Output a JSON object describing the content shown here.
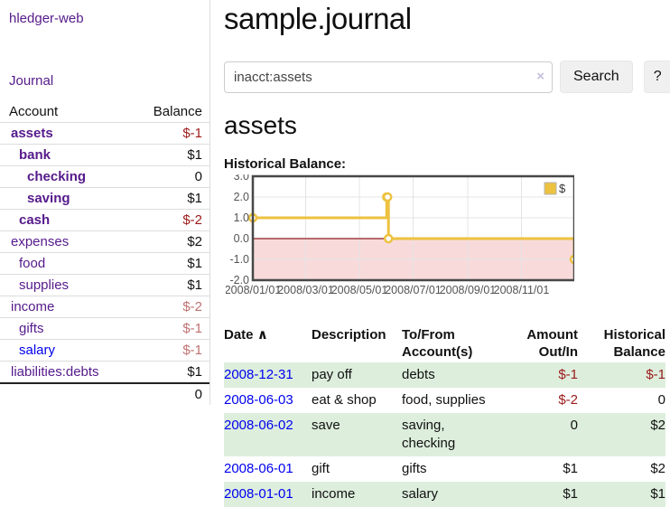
{
  "app": {
    "title": "hledger-web",
    "nav_journal": "Journal"
  },
  "sidebar": {
    "header": {
      "account": "Account",
      "balance": "Balance"
    },
    "accounts": [
      {
        "name": "assets",
        "depth": 1,
        "bold": true,
        "link_color": "purple",
        "balance": "$-1",
        "balance_style": "neg-strong"
      },
      {
        "name": "bank",
        "depth": 2,
        "bold": true,
        "link_color": "purple",
        "balance": "$1",
        "balance_style": "pos-strong"
      },
      {
        "name": "checking",
        "depth": 3,
        "bold": true,
        "link_color": "purple",
        "balance": "0",
        "balance_style": "pos-strong"
      },
      {
        "name": "saving",
        "depth": 3,
        "bold": true,
        "link_color": "purple",
        "balance": "$1",
        "balance_style": "pos-strong"
      },
      {
        "name": "cash",
        "depth": 2,
        "bold": true,
        "link_color": "purple",
        "balance": "$-2",
        "balance_style": "neg-strong"
      },
      {
        "name": "expenses",
        "depth": 1,
        "bold": false,
        "link_color": "purple",
        "balance": "$2",
        "balance_style": "pos"
      },
      {
        "name": "food",
        "depth": 2,
        "bold": false,
        "link_color": "purple",
        "balance": "$1",
        "balance_style": "pos"
      },
      {
        "name": "supplies",
        "depth": 2,
        "bold": false,
        "link_color": "purple",
        "balance": "$1",
        "balance_style": "pos"
      },
      {
        "name": "income",
        "depth": 1,
        "bold": false,
        "link_color": "purple",
        "balance": "$-2",
        "balance_style": "neg-muted"
      },
      {
        "name": "gifts",
        "depth": 2,
        "bold": false,
        "link_color": "purple",
        "balance": "$-1",
        "balance_style": "neg-muted"
      },
      {
        "name": "salary",
        "depth": 2,
        "bold": false,
        "link_color": "blue",
        "balance": "$-1",
        "balance_style": "neg-muted"
      },
      {
        "name": "liabilities:debts",
        "depth": 1,
        "bold": false,
        "link_color": "purple",
        "balance": "$1",
        "balance_style": "pos"
      }
    ],
    "total": "0"
  },
  "main": {
    "title": "sample.journal",
    "search": {
      "value": "inacct:assets",
      "clear_icon": "×",
      "button_label": "Search",
      "help_label": "?"
    },
    "account_heading": "assets",
    "chart_label": "Historical Balance:"
  },
  "chart_data": {
    "type": "line",
    "step": true,
    "title": "Historical Balance",
    "series": [
      {
        "name": "$",
        "color": "#edc240",
        "points": [
          [
            "2008-01-01",
            1
          ],
          [
            "2008-06-01",
            2
          ],
          [
            "2008-06-02",
            2
          ],
          [
            "2008-06-03",
            0
          ],
          [
            "2008-12-31",
            -1
          ]
        ]
      }
    ],
    "x_domain": [
      "2008-01-01",
      "2008-12-31"
    ],
    "x_ticks": [
      {
        "date": "2008-01-01",
        "label": "2008/01/01"
      },
      {
        "date": "2008-03-01",
        "label": "2008/03/01"
      },
      {
        "date": "2008-05-01",
        "label": "2008/05/01"
      },
      {
        "date": "2008-07-01",
        "label": "2008/07/01"
      },
      {
        "date": "2008-09-01",
        "label": "2008/09/01"
      },
      {
        "date": "2008-11-01",
        "label": "2008/11/01"
      }
    ],
    "y_ticks": [
      "3.0",
      "2.0",
      "1.0",
      "0.0",
      "-1.0",
      "-2.0"
    ],
    "ylim": [
      -2,
      3
    ],
    "grid": true,
    "legend": {
      "label": "$",
      "position": "top-right"
    },
    "colors": {
      "line": "#edc240",
      "marker_fill": "#ffffff",
      "negative_region": "#f8dada",
      "zero_line": "#8b1d1d",
      "grid": "#e4e4e4",
      "border": "#474747",
      "tick_text": "#545454"
    }
  },
  "transactions": {
    "headers": {
      "date": "Date",
      "description": "Description",
      "accounts": "To/From Account(s)",
      "amount": "Amount Out/In",
      "balance": "Historical Balance"
    },
    "sort_icon": "∧",
    "rows": [
      {
        "date": "2008-12-31",
        "description": "pay off",
        "accounts": "debts",
        "amount": "$-1",
        "amount_neg": true,
        "balance": "$-1",
        "balance_neg": true,
        "stripe": true
      },
      {
        "date": "2008-06-03",
        "description": "eat & shop",
        "accounts": "food, supplies",
        "amount": "$-2",
        "amount_neg": true,
        "balance": "0",
        "balance_neg": false,
        "stripe": false
      },
      {
        "date": "2008-06-02",
        "description": "save",
        "accounts": "saving, checking",
        "amount": "0",
        "amount_neg": false,
        "balance": "$2",
        "balance_neg": false,
        "stripe": true
      },
      {
        "date": "2008-06-01",
        "description": "gift",
        "accounts": "gifts",
        "amount": "$1",
        "amount_neg": false,
        "balance": "$2",
        "balance_neg": false,
        "stripe": false
      },
      {
        "date": "2008-01-01",
        "description": "income",
        "accounts": "salary",
        "amount": "$1",
        "amount_neg": false,
        "balance": "$1",
        "balance_neg": false,
        "stripe": true
      }
    ]
  }
}
